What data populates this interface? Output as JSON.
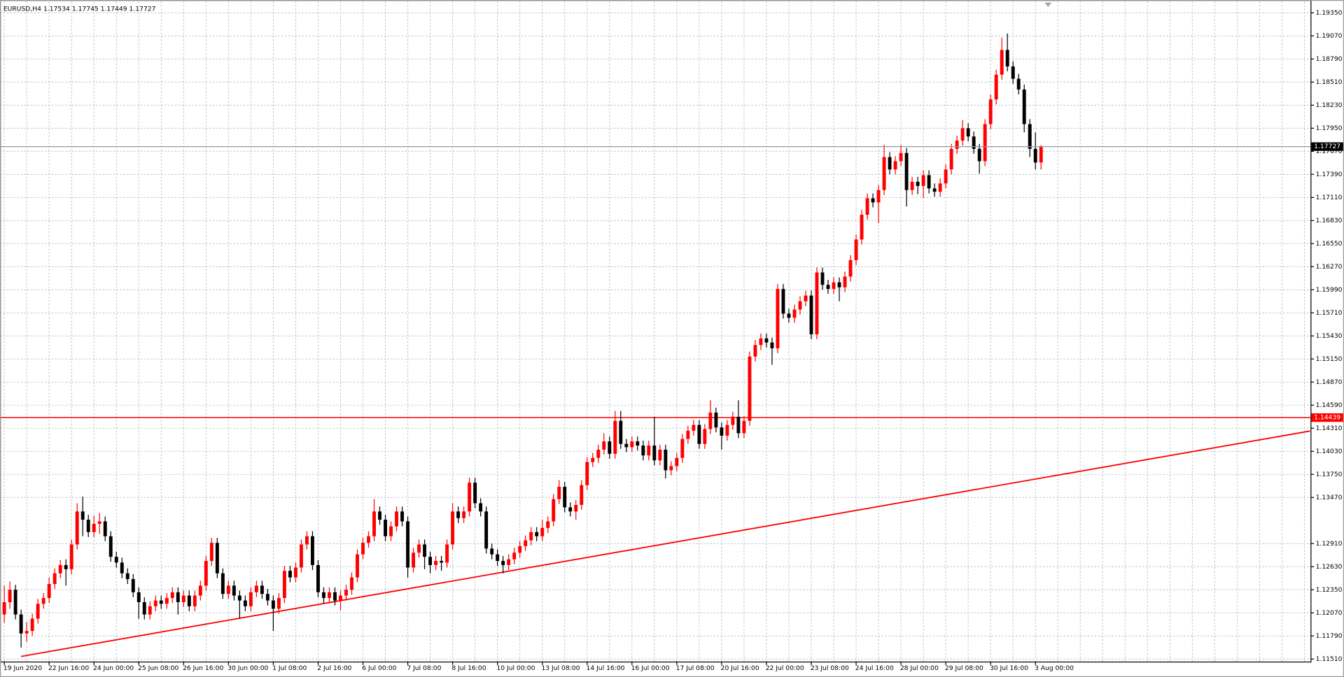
{
  "chart_data": {
    "type": "candlestick",
    "symbol": "EURUSD,H4",
    "up_color": "#ff0000",
    "down_color": "#000000",
    "grid": true,
    "grid_color": "#b8c0c8",
    "ylim": [
      1.11479,
      1.19485
    ],
    "yticks": [
      {
        "value": 1.1935,
        "label": "1.19350"
      },
      {
        "value": 1.1907,
        "label": "1.19070"
      },
      {
        "value": 1.1879,
        "label": "1.18790"
      },
      {
        "value": 1.1851,
        "label": "1.18510"
      },
      {
        "value": 1.1823,
        "label": "1.18230"
      },
      {
        "value": 1.1795,
        "label": "1.17950"
      },
      {
        "value": 1.1767,
        "label": "1.17670"
      },
      {
        "value": 1.1739,
        "label": "1.17390"
      },
      {
        "value": 1.1711,
        "label": "1.17110"
      },
      {
        "value": 1.1683,
        "label": "1.16830"
      },
      {
        "value": 1.1655,
        "label": "1.16550"
      },
      {
        "value": 1.1627,
        "label": "1.16270"
      },
      {
        "value": 1.1599,
        "label": "1.15990"
      },
      {
        "value": 1.1571,
        "label": "1.15710"
      },
      {
        "value": 1.1543,
        "label": "1.15430"
      },
      {
        "value": 1.1515,
        "label": "1.15150"
      },
      {
        "value": 1.1487,
        "label": "1.14870"
      },
      {
        "value": 1.1459,
        "label": "1.14590"
      },
      {
        "value": 1.1431,
        "label": "1.14310"
      },
      {
        "value": 1.1403,
        "label": "1.14030"
      },
      {
        "value": 1.1375,
        "label": "1.13750"
      },
      {
        "value": 1.1347,
        "label": "1.13470"
      },
      {
        "value": 1.1291,
        "label": "1.12910"
      },
      {
        "value": 1.1263,
        "label": "1.12630"
      },
      {
        "value": 1.1235,
        "label": "1.12350"
      },
      {
        "value": 1.1207,
        "label": "1.12070"
      },
      {
        "value": 1.1179,
        "label": "1.11790"
      },
      {
        "value": 1.1151,
        "label": "1.11510"
      }
    ],
    "hlines": [
      {
        "value": 1.14439,
        "color": "#ff0000"
      }
    ],
    "trend_line": {
      "bars": [
        3,
        233
      ],
      "prices": [
        1.11541,
        1.14276
      ],
      "color": "#ff0000"
    },
    "x": [
      "19 Jun 2020",
      null,
      null,
      null,
      null,
      null,
      null,
      null,
      "22 Jun 16:00",
      null,
      null,
      null,
      null,
      null,
      null,
      null,
      "24 Jun 00:00",
      null,
      null,
      null,
      null,
      null,
      null,
      null,
      "25 Jun 08:00",
      null,
      null,
      null,
      null,
      null,
      null,
      null,
      "26 Jun 16:00",
      null,
      null,
      null,
      null,
      null,
      null,
      null,
      "30 Jun 00:00",
      null,
      null,
      null,
      null,
      null,
      null,
      null,
      "1 Jul 08:00",
      null,
      null,
      null,
      null,
      null,
      null,
      null,
      "2 Jul 16:00",
      null,
      null,
      null,
      null,
      null,
      null,
      null,
      "6 Jul 00:00",
      null,
      null,
      null,
      null,
      null,
      null,
      null,
      "7 Jul 08:00",
      null,
      null,
      null,
      null,
      null,
      null,
      null,
      "8 Jul 16:00",
      null,
      null,
      null,
      null,
      null,
      null,
      null,
      "10 Jul 00:00",
      null,
      null,
      null,
      null,
      null,
      null,
      null,
      "13 Jul 08:00",
      null,
      null,
      null,
      null,
      null,
      null,
      null,
      "14 Jul 16:00",
      null,
      null,
      null,
      null,
      null,
      null,
      null,
      "16 Jul 00:00",
      null,
      null,
      null,
      null,
      null,
      null,
      null,
      "17 Jul 08:00",
      null,
      null,
      null,
      null,
      null,
      null,
      null,
      "20 Jul 16:00",
      null,
      null,
      null,
      null,
      null,
      null,
      null,
      "22 Jul 00:00",
      null,
      null,
      null,
      null,
      null,
      null,
      null,
      "23 Jul 08:00",
      null,
      null,
      null,
      null,
      null,
      null,
      null,
      "24 Jul 16:00",
      null,
      null,
      null,
      null,
      null,
      null,
      null,
      "28 Jul 00:00",
      null,
      null,
      null,
      null,
      null,
      null,
      null,
      "29 Jul 08:00",
      null,
      null,
      null,
      null,
      null,
      null,
      null,
      "30 Jul 16:00",
      null,
      null,
      null,
      null,
      null,
      null,
      null,
      "3 Aug 00:00",
      null
    ],
    "ohlc": [
      [
        1.1205,
        1.124,
        1.1195,
        1.122
      ],
      [
        1.122,
        1.1245,
        1.1212,
        1.1235
      ],
      [
        1.1235,
        1.1241,
        1.1199,
        1.1205
      ],
      [
        1.1205,
        1.1211,
        1.1165,
        1.1182
      ],
      [
        1.1182,
        1.1196,
        1.1172,
        1.1185
      ],
      [
        1.1185,
        1.1206,
        1.1179,
        1.12
      ],
      [
        1.12,
        1.1224,
        1.1194,
        1.1218
      ],
      [
        1.1218,
        1.1231,
        1.1212,
        1.1225
      ],
      [
        1.1225,
        1.125,
        1.1219,
        1.1242
      ],
      [
        1.1242,
        1.1261,
        1.1236,
        1.1255
      ],
      [
        1.1255,
        1.1271,
        1.1249,
        1.1265
      ],
      [
        1.1265,
        1.1272,
        1.124,
        1.126
      ],
      [
        1.126,
        1.1296,
        1.1254,
        1.129
      ],
      [
        1.129,
        1.134,
        1.1284,
        1.133
      ],
      [
        1.133,
        1.1348,
        1.13,
        1.132
      ],
      [
        1.132,
        1.1326,
        1.1299,
        1.1305
      ],
      [
        1.1305,
        1.1325,
        1.1299,
        1.1315
      ],
      [
        1.1315,
        1.1328,
        1.1303,
        1.1318
      ],
      [
        1.1318,
        1.1324,
        1.1294,
        1.13
      ],
      [
        1.13,
        1.1306,
        1.1269,
        1.1275
      ],
      [
        1.1275,
        1.1281,
        1.1262,
        1.1268
      ],
      [
        1.1268,
        1.1274,
        1.1249,
        1.1255
      ],
      [
        1.1255,
        1.1261,
        1.1242,
        1.1248
      ],
      [
        1.1248,
        1.1254,
        1.1226,
        1.1232
      ],
      [
        1.1232,
        1.1238,
        1.12,
        1.122
      ],
      [
        1.122,
        1.1226,
        1.1199,
        1.1205
      ],
      [
        1.1205,
        1.1221,
        1.1199,
        1.1215
      ],
      [
        1.1215,
        1.1228,
        1.1209,
        1.1222
      ],
      [
        1.1222,
        1.1228,
        1.1212,
        1.1218
      ],
      [
        1.1218,
        1.1231,
        1.1212,
        1.1225
      ],
      [
        1.1225,
        1.1238,
        1.1219,
        1.1232
      ],
      [
        1.1232,
        1.1238,
        1.1205,
        1.122
      ],
      [
        1.122,
        1.1234,
        1.1214,
        1.1228
      ],
      [
        1.1228,
        1.1234,
        1.1209,
        1.1215
      ],
      [
        1.1215,
        1.1234,
        1.1209,
        1.1228
      ],
      [
        1.1228,
        1.1246,
        1.1222,
        1.124
      ],
      [
        1.124,
        1.1276,
        1.1234,
        1.127
      ],
      [
        1.127,
        1.1298,
        1.1264,
        1.1292
      ],
      [
        1.1292,
        1.1298,
        1.1249,
        1.1255
      ],
      [
        1.1255,
        1.1261,
        1.1224,
        1.123
      ],
      [
        1.123,
        1.1246,
        1.1224,
        1.124
      ],
      [
        1.124,
        1.1246,
        1.1222,
        1.1228
      ],
      [
        1.1228,
        1.1234,
        1.12,
        1.1222
      ],
      [
        1.1222,
        1.1228,
        1.1209,
        1.1215
      ],
      [
        1.1215,
        1.1238,
        1.1209,
        1.1232
      ],
      [
        1.1232,
        1.1246,
        1.1226,
        1.124
      ],
      [
        1.124,
        1.1246,
        1.1224,
        1.123
      ],
      [
        1.123,
        1.1236,
        1.1216,
        1.1222
      ],
      [
        1.1222,
        1.1228,
        1.1185,
        1.1212
      ],
      [
        1.1212,
        1.1231,
        1.1206,
        1.1225
      ],
      [
        1.1225,
        1.1264,
        1.1219,
        1.1258
      ],
      [
        1.1258,
        1.1264,
        1.1244,
        1.125
      ],
      [
        1.125,
        1.1268,
        1.1244,
        1.1262
      ],
      [
        1.1262,
        1.1296,
        1.1256,
        1.129
      ],
      [
        1.129,
        1.1306,
        1.1284,
        1.13
      ],
      [
        1.13,
        1.1306,
        1.1259,
        1.1265
      ],
      [
        1.1265,
        1.1271,
        1.1226,
        1.1232
      ],
      [
        1.1232,
        1.1238,
        1.1219,
        1.1225
      ],
      [
        1.1225,
        1.1238,
        1.1219,
        1.1232
      ],
      [
        1.1232,
        1.1238,
        1.1216,
        1.1222
      ],
      [
        1.1222,
        1.1234,
        1.121,
        1.1228
      ],
      [
        1.1228,
        1.1241,
        1.1222,
        1.1235
      ],
      [
        1.1235,
        1.1256,
        1.1229,
        1.125
      ],
      [
        1.125,
        1.1284,
        1.1244,
        1.1278
      ],
      [
        1.1278,
        1.1298,
        1.1272,
        1.1292
      ],
      [
        1.1292,
        1.1306,
        1.1286,
        1.13
      ],
      [
        1.13,
        1.1345,
        1.1294,
        1.133
      ],
      [
        1.133,
        1.1336,
        1.1314,
        1.132
      ],
      [
        1.132,
        1.1326,
        1.1294,
        1.13
      ],
      [
        1.13,
        1.1318,
        1.1294,
        1.1312
      ],
      [
        1.1312,
        1.1336,
        1.1306,
        1.133
      ],
      [
        1.133,
        1.1336,
        1.1312,
        1.1318
      ],
      [
        1.1318,
        1.1324,
        1.125,
        1.1262
      ],
      [
        1.1262,
        1.1286,
        1.1256,
        1.128
      ],
      [
        1.128,
        1.1296,
        1.1274,
        1.129
      ],
      [
        1.129,
        1.1296,
        1.126,
        1.1275
      ],
      [
        1.1275,
        1.1281,
        1.1255,
        1.1265
      ],
      [
        1.1265,
        1.1276,
        1.1259,
        1.127
      ],
      [
        1.127,
        1.1276,
        1.1258,
        1.1268
      ],
      [
        1.1268,
        1.1296,
        1.1262,
        1.129
      ],
      [
        1.129,
        1.134,
        1.1284,
        1.133
      ],
      [
        1.133,
        1.1336,
        1.1316,
        1.1322
      ],
      [
        1.1322,
        1.1336,
        1.1316,
        1.133
      ],
      [
        1.133,
        1.1371,
        1.1324,
        1.1365
      ],
      [
        1.1365,
        1.1371,
        1.1334,
        1.134
      ],
      [
        1.134,
        1.1346,
        1.1324,
        1.133
      ],
      [
        1.133,
        1.1336,
        1.1279,
        1.1285
      ],
      [
        1.1285,
        1.1291,
        1.1272,
        1.1278
      ],
      [
        1.1278,
        1.1284,
        1.1264,
        1.127
      ],
      [
        1.127,
        1.1276,
        1.1255,
        1.1265
      ],
      [
        1.1265,
        1.1278,
        1.1259,
        1.1272
      ],
      [
        1.1272,
        1.1286,
        1.1266,
        1.128
      ],
      [
        1.128,
        1.1294,
        1.1274,
        1.1288
      ],
      [
        1.1288,
        1.1301,
        1.1282,
        1.1295
      ],
      [
        1.1295,
        1.1311,
        1.1289,
        1.1305
      ],
      [
        1.1305,
        1.1311,
        1.1294,
        1.13
      ],
      [
        1.13,
        1.132,
        1.1294,
        1.131
      ],
      [
        1.131,
        1.1324,
        1.1304,
        1.1318
      ],
      [
        1.1318,
        1.1351,
        1.1312,
        1.1345
      ],
      [
        1.1345,
        1.1368,
        1.1339,
        1.136
      ],
      [
        1.136,
        1.1366,
        1.1329,
        1.1335
      ],
      [
        1.1335,
        1.1341,
        1.1324,
        1.133
      ],
      [
        1.133,
        1.1344,
        1.132,
        1.1338
      ],
      [
        1.1338,
        1.1368,
        1.1332,
        1.1362
      ],
      [
        1.1362,
        1.1396,
        1.1356,
        1.139
      ],
      [
        1.139,
        1.1401,
        1.1384,
        1.1395
      ],
      [
        1.1395,
        1.1411,
        1.1389,
        1.1405
      ],
      [
        1.1405,
        1.1425,
        1.1399,
        1.1415
      ],
      [
        1.1415,
        1.1421,
        1.1394,
        1.14
      ],
      [
        1.14,
        1.1452,
        1.1394,
        1.144
      ],
      [
        1.144,
        1.1452,
        1.1406,
        1.1412
      ],
      [
        1.1412,
        1.1418,
        1.1402,
        1.1408
      ],
      [
        1.1408,
        1.1421,
        1.1402,
        1.1415
      ],
      [
        1.1415,
        1.1421,
        1.1404,
        1.141
      ],
      [
        1.141,
        1.1416,
        1.1392,
        1.1398
      ],
      [
        1.1398,
        1.1416,
        1.1392,
        1.141
      ],
      [
        1.141,
        1.1445,
        1.1386,
        1.1392
      ],
      [
        1.1392,
        1.1411,
        1.1386,
        1.1405
      ],
      [
        1.1405,
        1.1411,
        1.137,
        1.138
      ],
      [
        1.138,
        1.1391,
        1.1374,
        1.1385
      ],
      [
        1.1385,
        1.1401,
        1.1379,
        1.1395
      ],
      [
        1.1395,
        1.1424,
        1.1389,
        1.1418
      ],
      [
        1.1418,
        1.1434,
        1.1412,
        1.1428
      ],
      [
        1.1428,
        1.1441,
        1.1422,
        1.1435
      ],
      [
        1.1435,
        1.1441,
        1.1406,
        1.1412
      ],
      [
        1.1412,
        1.1436,
        1.1406,
        1.143
      ],
      [
        1.143,
        1.1465,
        1.1424,
        1.145
      ],
      [
        1.145,
        1.1456,
        1.1426,
        1.1432
      ],
      [
        1.1432,
        1.1438,
        1.1405,
        1.1422
      ],
      [
        1.1422,
        1.1441,
        1.1416,
        1.1435
      ],
      [
        1.1435,
        1.1451,
        1.1429,
        1.1445
      ],
      [
        1.1445,
        1.1465,
        1.1419,
        1.1425
      ],
      [
        1.1425,
        1.1446,
        1.1419,
        1.144
      ],
      [
        1.144,
        1.1524,
        1.1434,
        1.1518
      ],
      [
        1.1518,
        1.1538,
        1.1512,
        1.1532
      ],
      [
        1.1532,
        1.1546,
        1.1526,
        1.154
      ],
      [
        1.154,
        1.1546,
        1.1529,
        1.1535
      ],
      [
        1.1535,
        1.1541,
        1.1508,
        1.1528
      ],
      [
        1.1528,
        1.1606,
        1.1522,
        1.16
      ],
      [
        1.16,
        1.1606,
        1.1564,
        1.157
      ],
      [
        1.157,
        1.1576,
        1.1559,
        1.1565
      ],
      [
        1.1565,
        1.1581,
        1.1559,
        1.1575
      ],
      [
        1.1575,
        1.1591,
        1.1569,
        1.1585
      ],
      [
        1.1585,
        1.1598,
        1.1579,
        1.1592
      ],
      [
        1.1592,
        1.1598,
        1.1539,
        1.1545
      ],
      [
        1.1545,
        1.1626,
        1.1539,
        1.162
      ],
      [
        1.162,
        1.1626,
        1.1599,
        1.1605
      ],
      [
        1.1605,
        1.1611,
        1.1594,
        1.16
      ],
      [
        1.16,
        1.1614,
        1.1594,
        1.1608
      ],
      [
        1.1608,
        1.1614,
        1.1585,
        1.1602
      ],
      [
        1.1602,
        1.1621,
        1.1596,
        1.1615
      ],
      [
        1.1615,
        1.1641,
        1.1609,
        1.1635
      ],
      [
        1.1635,
        1.1666,
        1.1629,
        1.166
      ],
      [
        1.166,
        1.1696,
        1.1654,
        1.169
      ],
      [
        1.169,
        1.1716,
        1.1684,
        1.171
      ],
      [
        1.171,
        1.1716,
        1.1699,
        1.1705
      ],
      [
        1.1705,
        1.1726,
        1.168,
        1.172
      ],
      [
        1.172,
        1.1775,
        1.1714,
        1.176
      ],
      [
        1.176,
        1.1766,
        1.1739,
        1.1745
      ],
      [
        1.1745,
        1.1761,
        1.1739,
        1.1755
      ],
      [
        1.1755,
        1.1775,
        1.1749,
        1.1765
      ],
      [
        1.1765,
        1.1771,
        1.17,
        1.172
      ],
      [
        1.172,
        1.1736,
        1.1714,
        1.173
      ],
      [
        1.173,
        1.1736,
        1.1715,
        1.1725
      ],
      [
        1.1725,
        1.1744,
        1.171,
        1.1738
      ],
      [
        1.1738,
        1.1744,
        1.1716,
        1.1722
      ],
      [
        1.1722,
        1.1728,
        1.1712,
        1.1718
      ],
      [
        1.1718,
        1.1734,
        1.1712,
        1.1728
      ],
      [
        1.1728,
        1.1751,
        1.1722,
        1.1745
      ],
      [
        1.1745,
        1.1776,
        1.1739,
        1.177
      ],
      [
        1.177,
        1.1786,
        1.1764,
        1.178
      ],
      [
        1.178,
        1.1805,
        1.1774,
        1.1795
      ],
      [
        1.1795,
        1.1801,
        1.1779,
        1.1785
      ],
      [
        1.1785,
        1.1791,
        1.1764,
        1.177
      ],
      [
        1.177,
        1.1776,
        1.174,
        1.1755
      ],
      [
        1.1755,
        1.1806,
        1.1749,
        1.18
      ],
      [
        1.18,
        1.1836,
        1.1794,
        1.183
      ],
      [
        1.183,
        1.1866,
        1.1824,
        1.186
      ],
      [
        1.186,
        1.1905,
        1.1854,
        1.189
      ],
      [
        1.189,
        1.191,
        1.1864,
        1.187
      ],
      [
        1.187,
        1.1876,
        1.1849,
        1.1855
      ],
      [
        1.1855,
        1.1861,
        1.1836,
        1.1842
      ],
      [
        1.1842,
        1.1848,
        1.179,
        1.18
      ],
      [
        1.18,
        1.1806,
        1.176,
        1.177
      ],
      [
        1.177,
        1.179,
        1.1745,
        1.17534
      ],
      [
        1.17534,
        1.17745,
        1.17449,
        1.17727
      ]
    ]
  }
}
